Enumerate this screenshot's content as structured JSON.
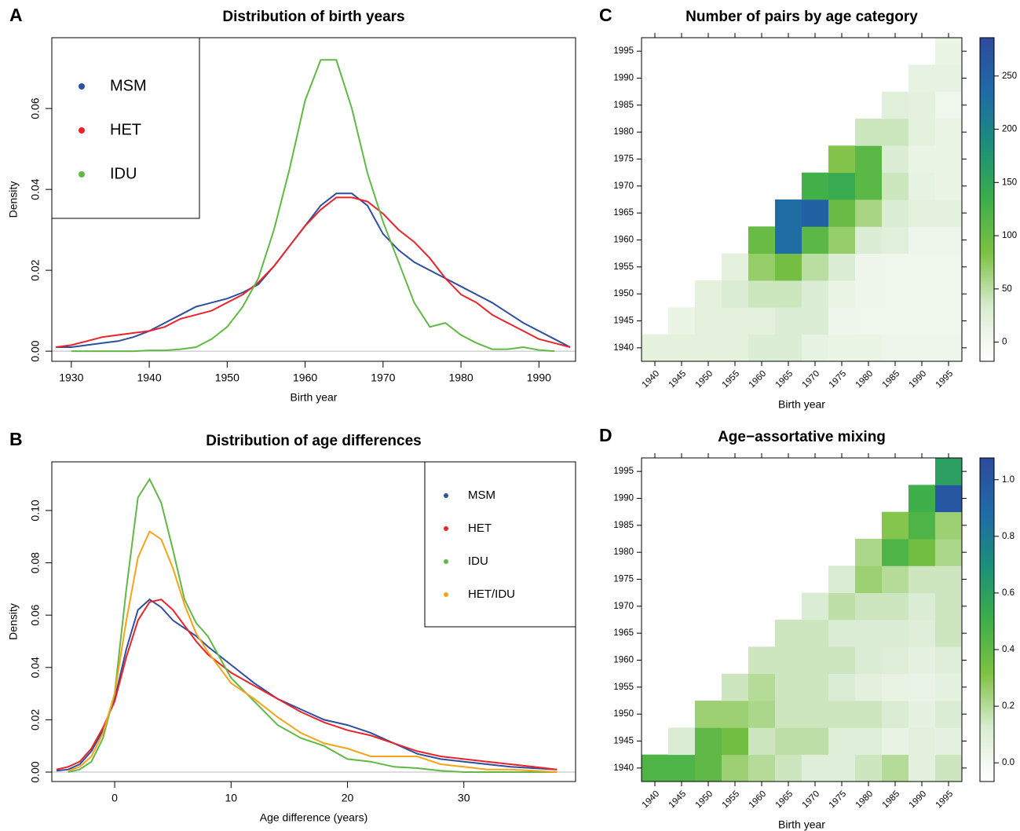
{
  "chart_data": [
    {
      "type": "line",
      "panel": "A",
      "title": "Distribution of birth years",
      "xlabel": "Birth year",
      "ylabel": "Density",
      "x": [
        1928,
        1930,
        1932,
        1934,
        1936,
        1938,
        1940,
        1942,
        1944,
        1946,
        1948,
        1950,
        1952,
        1954,
        1956,
        1958,
        1960,
        1962,
        1964,
        1966,
        1968,
        1970,
        1972,
        1974,
        1976,
        1978,
        1980,
        1982,
        1984,
        1986,
        1988,
        1990,
        1992,
        1994
      ],
      "series": [
        {
          "name": "MSM",
          "color": "#2d4fa0",
          "values": [
            0.001,
            0.001,
            0.0015,
            0.002,
            0.0025,
            0.0035,
            0.005,
            0.007,
            0.009,
            0.011,
            0.012,
            0.013,
            0.0145,
            0.0165,
            0.021,
            0.026,
            0.031,
            0.036,
            0.039,
            0.039,
            0.036,
            0.029,
            0.025,
            0.022,
            0.02,
            0.018,
            0.016,
            0.014,
            0.012,
            0.0095,
            0.007,
            0.005,
            0.003,
            0.001
          ]
        },
        {
          "name": "HET",
          "color": "#e8242a",
          "values": [
            0.001,
            0.0015,
            0.0025,
            0.0035,
            0.004,
            0.0045,
            0.005,
            0.006,
            0.008,
            0.009,
            0.01,
            0.012,
            0.014,
            0.017,
            0.021,
            0.026,
            0.031,
            0.035,
            0.038,
            0.038,
            0.037,
            0.034,
            0.03,
            0.027,
            0.023,
            0.018,
            0.014,
            0.012,
            0.009,
            0.007,
            0.005,
            0.003,
            0.002,
            0.001
          ]
        },
        {
          "name": "IDU",
          "color": "#62b846",
          "values": [
            null,
            0,
            0,
            0,
            0,
            0,
            0.0002,
            0.0002,
            0.0005,
            0.001,
            0.003,
            0.006,
            0.011,
            0.018,
            0.03,
            0.045,
            0.062,
            0.072,
            0.072,
            0.06,
            0.044,
            0.032,
            0.022,
            0.012,
            0.006,
            0.007,
            0.004,
            0.002,
            0.0005,
            0.0005,
            0.001,
            0.0003,
            0,
            null
          ]
        }
      ],
      "xlim": [
        1927.5,
        1994.7
      ],
      "xticks": [
        1930,
        1940,
        1950,
        1960,
        1970,
        1980,
        1990
      ],
      "ylim": [
        -0.0025,
        0.0775
      ],
      "yticks": [
        {
          "value": 0,
          "label": "0.00"
        },
        {
          "value": 0.02,
          "label": "0.02"
        },
        {
          "value": 0.04,
          "label": "0.04"
        },
        {
          "value": 0.06,
          "label": "0.06"
        }
      ],
      "legend": "upper left"
    },
    {
      "type": "line",
      "panel": "B",
      "title": "Distribution of age differences",
      "xlabel": "Age difference (years)",
      "ylabel": "Density",
      "x": [
        -5,
        -4,
        -3,
        -2,
        -1,
        0,
        1,
        2,
        3,
        4,
        5,
        6,
        7,
        8,
        10,
        12,
        14,
        16,
        18,
        20,
        22,
        24,
        26,
        28,
        30,
        32,
        34,
        36,
        38
      ],
      "series": [
        {
          "name": "MSM",
          "color": "#2d4fa0",
          "values": [
            0.0005,
            0.001,
            0.003,
            0.008,
            0.016,
            0.028,
            0.047,
            0.062,
            0.066,
            0.063,
            0.058,
            0.055,
            0.052,
            0.048,
            0.041,
            0.034,
            0.028,
            0.024,
            0.02,
            0.018,
            0.015,
            0.011,
            0.007,
            0.005,
            0.004,
            0.003,
            0.002,
            0.0015,
            0.001
          ]
        },
        {
          "name": "HET",
          "color": "#e8242a",
          "values": [
            0.001,
            0.002,
            0.004,
            0.009,
            0.017,
            0.027,
            0.044,
            0.058,
            0.065,
            0.066,
            0.062,
            0.056,
            0.05,
            0.045,
            0.038,
            0.033,
            0.028,
            0.023,
            0.019,
            0.016,
            0.014,
            0.011,
            0.008,
            0.006,
            0.005,
            0.004,
            0.003,
            0.002,
            0.001
          ]
        },
        {
          "name": "IDU",
          "color": "#62b846",
          "values": [
            null,
            0,
            0.001,
            0.004,
            0.013,
            0.03,
            0.07,
            0.105,
            0.112,
            0.103,
            0.085,
            0.066,
            0.057,
            0.052,
            0.036,
            0.027,
            0.018,
            0.013,
            0.01,
            0.005,
            0.004,
            0.002,
            0.0015,
            0.0005,
            0,
            0,
            0,
            0,
            0
          ]
        },
        {
          "name": "HET/IDU",
          "color": "#f5a31a",
          "values": [
            null,
            0.0005,
            0.002,
            0.006,
            0.015,
            0.03,
            0.058,
            0.082,
            0.092,
            0.089,
            0.078,
            0.064,
            0.053,
            0.046,
            0.034,
            0.028,
            0.021,
            0.015,
            0.011,
            0.009,
            0.006,
            0.006,
            0.006,
            0.003,
            0.002,
            0.001,
            0.001,
            0.0005,
            0
          ]
        }
      ],
      "xlim": [
        -5.4,
        39.6
      ],
      "xticks": [
        0,
        10,
        20,
        30
      ],
      "ylim": [
        -0.0036,
        0.1186
      ],
      "yticks": [
        {
          "value": 0,
          "label": "0.00"
        },
        {
          "value": 0.02,
          "label": "0.02"
        },
        {
          "value": 0.04,
          "label": "0.04"
        },
        {
          "value": 0.06,
          "label": "0.06"
        },
        {
          "value": 0.08,
          "label": "0.08"
        },
        {
          "value": 0.1,
          "label": "0.10"
        }
      ],
      "legend": "upper right"
    },
    {
      "type": "heatmap",
      "panel": "C",
      "title": "Number of pairs by age category",
      "xlabel": "Birth year",
      "x": [
        1940,
        1945,
        1950,
        1955,
        1960,
        1965,
        1970,
        1975,
        1980,
        1985,
        1990,
        1995
      ],
      "y": [
        1940,
        1945,
        1950,
        1955,
        1960,
        1965,
        1970,
        1975,
        1980,
        1985,
        1990,
        1995
      ],
      "values": [
        [
          20,
          20,
          20,
          20,
          30,
          30,
          15,
          10,
          10,
          5,
          5,
          5
        ],
        [
          null,
          10,
          20,
          20,
          20,
          30,
          30,
          5,
          3,
          3,
          3,
          3
        ],
        [
          null,
          null,
          20,
          30,
          40,
          40,
          30,
          10,
          5,
          3,
          3,
          3
        ],
        [
          null,
          null,
          null,
          20,
          70,
          90,
          50,
          30,
          5,
          3,
          3,
          3
        ],
        [
          null,
          null,
          null,
          null,
          100,
          230,
          110,
          70,
          30,
          25,
          5,
          5
        ],
        [
          null,
          null,
          null,
          null,
          null,
          230,
          250,
          100,
          60,
          30,
          20,
          20
        ],
        [
          null,
          null,
          null,
          null,
          null,
          null,
          130,
          140,
          110,
          40,
          15,
          10
        ],
        [
          null,
          null,
          null,
          null,
          null,
          null,
          null,
          80,
          110,
          30,
          10,
          10
        ],
        [
          null,
          null,
          null,
          null,
          null,
          null,
          null,
          null,
          40,
          40,
          20,
          10
        ],
        [
          null,
          null,
          null,
          null,
          null,
          null,
          null,
          null,
          null,
          25,
          20,
          3
        ],
        [
          null,
          null,
          null,
          null,
          null,
          null,
          null,
          null,
          null,
          null,
          15,
          15
        ],
        [
          null,
          null,
          null,
          null,
          null,
          null,
          null,
          null,
          null,
          null,
          null,
          10
        ]
      ],
      "zlim": [
        -18,
        286
      ],
      "zticks": [
        0,
        50,
        100,
        150,
        200,
        250
      ],
      "colors": [
        "#ffffff",
        "#d9ecd2",
        "#7dc242",
        "#3cae4a",
        "#1b8f7a",
        "#1f6aa8",
        "#2e4a9e"
      ]
    },
    {
      "type": "heatmap",
      "panel": "D",
      "title": "Age−assortative mixing",
      "xlabel": "Birth year",
      "x": [
        1940,
        1945,
        1950,
        1955,
        1960,
        1965,
        1970,
        1975,
        1980,
        1985,
        1990,
        1995
      ],
      "y": [
        1940,
        1945,
        1950,
        1955,
        1960,
        1965,
        1970,
        1975,
        1980,
        1985,
        1990,
        1995
      ],
      "values": [
        [
          0.45,
          0.45,
          0.4,
          0.25,
          0.2,
          0.15,
          0.1,
          0.1,
          0.15,
          0.2,
          0.08,
          0.15
        ],
        [
          null,
          0.12,
          0.4,
          0.35,
          0.15,
          0.18,
          0.18,
          0.1,
          0.1,
          0.05,
          0.08,
          0.06
        ],
        [
          null,
          null,
          0.25,
          0.25,
          0.22,
          0.15,
          0.15,
          0.15,
          0.15,
          0.12,
          0.06,
          0.12
        ],
        [
          null,
          null,
          null,
          0.15,
          0.2,
          0.15,
          0.15,
          0.12,
          0.08,
          0.05,
          0.04,
          0.06
        ],
        [
          null,
          null,
          null,
          null,
          0.15,
          0.15,
          0.15,
          0.15,
          0.12,
          0.1,
          0.06,
          0.1
        ],
        [
          null,
          null,
          null,
          null,
          null,
          0.15,
          0.15,
          0.12,
          0.12,
          0.12,
          0.1,
          0.15
        ],
        [
          null,
          null,
          null,
          null,
          null,
          null,
          0.12,
          0.18,
          0.15,
          0.15,
          0.12,
          0.15
        ],
        [
          null,
          null,
          null,
          null,
          null,
          null,
          null,
          0.12,
          0.25,
          0.2,
          0.15,
          0.15
        ],
        [
          null,
          null,
          null,
          null,
          null,
          null,
          null,
          null,
          0.22,
          0.45,
          0.35,
          0.22
        ],
        [
          null,
          null,
          null,
          null,
          null,
          null,
          null,
          null,
          null,
          0.3,
          0.45,
          0.25
        ],
        [
          null,
          null,
          null,
          null,
          null,
          null,
          null,
          null,
          null,
          null,
          0.5,
          1.0
        ],
        [
          null,
          null,
          null,
          null,
          null,
          null,
          null,
          null,
          null,
          null,
          null,
          0.6
        ]
      ],
      "zlim": [
        -0.066,
        1.077
      ],
      "zticks": [
        {
          "value": 0,
          "label": "0.0"
        },
        {
          "value": 0.2,
          "label": "0.2"
        },
        {
          "value": 0.4,
          "label": "0.4"
        },
        {
          "value": 0.6,
          "label": "0.6"
        },
        {
          "value": 0.8,
          "label": "0.8"
        },
        {
          "value": 1.0,
          "label": "1.0"
        }
      ],
      "colors": [
        "#ffffff",
        "#d9ecd2",
        "#7dc242",
        "#3cae4a",
        "#1b8f7a",
        "#1f6aa8",
        "#2e4a9e"
      ]
    }
  ]
}
